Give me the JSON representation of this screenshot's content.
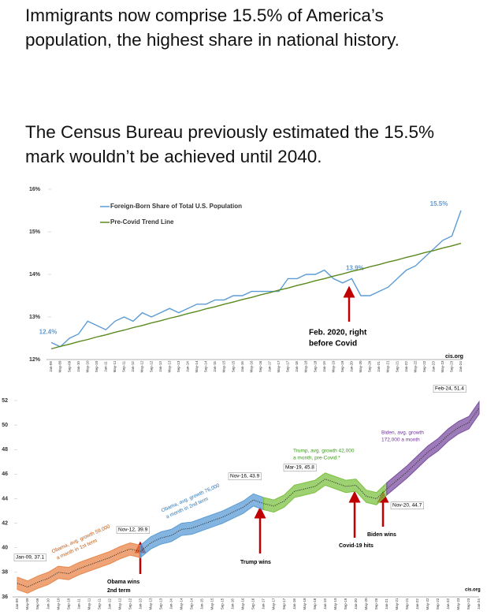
{
  "post": {
    "paragraphs": [
      "Immigrants now comprise 15.5% of America’s population, the highest share in national history.",
      "The Census Bureau previously estimated the 15.5% mark wouldn’t be achieved until 2040."
    ]
  },
  "chart_data": [
    {
      "type": "line",
      "legend": "top-left",
      "categories": [
        "Jan-09",
        "May-09",
        "Sep-09",
        "Jan-10",
        "May-10",
        "Sep-10",
        "Jan-11",
        "May-11",
        "Sep-11",
        "Jan-12",
        "May-12",
        "Sep-12",
        "Jan-13",
        "May-13",
        "Sep-13",
        "Jan-14",
        "May-14",
        "Sep-14",
        "Jan-15",
        "May-15",
        "Sep-15",
        "Jan-16",
        "May-16",
        "Sep-16",
        "Jan-17",
        "May-17",
        "Sep-17",
        "Jan-18",
        "May-18",
        "Sep-18",
        "Jan-19",
        "May-19",
        "Sep-19",
        "Jan-20",
        "May-20",
        "Sep-20",
        "Jan-21",
        "May-21",
        "Sep-21",
        "Jan-22",
        "May-22",
        "Sep-22",
        "Jan-23",
        "May-23",
        "Sep-23",
        "Jan-24"
      ],
      "series": [
        {
          "name": "Foreign-Born Share of Total U.S. Population",
          "color": "#5b9bd5",
          "values": [
            12.4,
            12.3,
            12.5,
            12.6,
            12.9,
            12.8,
            12.7,
            12.9,
            13.0,
            12.9,
            13.1,
            13.0,
            13.1,
            13.2,
            13.1,
            13.2,
            13.3,
            13.3,
            13.4,
            13.4,
            13.5,
            13.5,
            13.6,
            13.6,
            13.6,
            13.6,
            13.9,
            13.9,
            14.0,
            14.0,
            14.1,
            13.9,
            13.8,
            13.9,
            13.5,
            13.5,
            13.6,
            13.7,
            13.9,
            14.1,
            14.2,
            14.4,
            14.6,
            14.8,
            14.9,
            15.5
          ],
          "value_labels": [
            "12.4%",
            null,
            null,
            null,
            null,
            null,
            null,
            null,
            null,
            null,
            null,
            null,
            null,
            null,
            null,
            null,
            null,
            null,
            null,
            null,
            null,
            null,
            null,
            null,
            null,
            null,
            null,
            null,
            null,
            null,
            null,
            null,
            null,
            "13.9%",
            null,
            null,
            null,
            null,
            null,
            null,
            null,
            null,
            null,
            null,
            null,
            "15.5%"
          ]
        },
        {
          "name": "Pre-Covid Trend Line",
          "color": "#5a8a1e",
          "values": [
            12.25,
            12.31,
            12.36,
            12.42,
            12.47,
            12.53,
            12.58,
            12.64,
            12.69,
            12.75,
            12.8,
            12.86,
            12.91,
            12.97,
            13.02,
            13.08,
            13.13,
            13.19,
            13.24,
            13.3,
            13.35,
            13.41,
            13.46,
            13.52,
            13.57,
            13.63,
            13.68,
            13.74,
            13.79,
            13.85,
            13.9,
            13.96,
            14.01,
            14.07,
            14.12,
            14.18,
            14.23,
            14.29,
            14.34,
            14.4,
            14.45,
            14.51,
            14.56,
            14.62,
            14.67,
            14.73
          ]
        }
      ],
      "ylim": [
        12,
        16
      ],
      "yticks": [
        {
          "value": 12,
          "label": "12%"
        },
        {
          "value": 13,
          "label": "13%"
        },
        {
          "value": 14,
          "label": "14%"
        },
        {
          "value": 15,
          "label": "15%"
        },
        {
          "value": 16,
          "label": "16%"
        }
      ],
      "annotations": [
        "Feb. 2020, right",
        "before Covid",
        "cis.org"
      ]
    },
    {
      "type": "line",
      "categories": [
        "Jan-09",
        "May-09",
        "Sep-09",
        "Jan-10",
        "May-10",
        "Sep-10",
        "Jan-11",
        "May-11",
        "Sep-11",
        "Jan-12",
        "May-12",
        "Sep-12",
        "Jan-13",
        "May-13",
        "Sep-13",
        "Jan-14",
        "May-14",
        "Sep-14",
        "Jan-15",
        "May-15",
        "Sep-15",
        "Jan-16",
        "May-16",
        "Sep-16",
        "Jan-17",
        "May-17",
        "Sep-17",
        "Jan-18",
        "May-18",
        "Sep-18",
        "Jan-19",
        "May-19",
        "Sep-19",
        "Jan-20",
        "May-20",
        "Sep-20",
        "Jan-21",
        "May-21",
        "Sep-21",
        "Jan-22",
        "May-22",
        "Sep-22",
        "Jan-23",
        "May-23",
        "Sep-23",
        "Jan-24"
      ],
      "series": [
        {
          "color": "#e8864a",
          "error": 0.5,
          "values": [
            37.1,
            36.8,
            37.2,
            37.5,
            38.0,
            37.9,
            38.3,
            38.6,
            38.9,
            39.2,
            39.6,
            39.9,
            39.7,
            null,
            null,
            null,
            null,
            null,
            null,
            null,
            null,
            null,
            null,
            null,
            null,
            null,
            null,
            null,
            null,
            null,
            null,
            null,
            null,
            null,
            null,
            null,
            null,
            null,
            null,
            null,
            null,
            null,
            null,
            null,
            null,
            null
          ]
        },
        {
          "color": "#5b9bd5",
          "error": 0.5,
          "values": [
            null,
            null,
            null,
            null,
            null,
            null,
            null,
            null,
            null,
            null,
            null,
            null,
            39.7,
            40.4,
            40.8,
            41.0,
            41.5,
            41.6,
            41.9,
            42.2,
            42.5,
            42.9,
            43.3,
            43.9,
            43.6,
            null,
            null,
            null,
            null,
            null,
            null,
            null,
            null,
            null,
            null,
            null,
            null,
            null,
            null,
            null,
            null,
            null,
            null,
            null,
            null,
            null
          ]
        },
        {
          "color": "#7cc142",
          "error": 0.5,
          "values": [
            null,
            null,
            null,
            null,
            null,
            null,
            null,
            null,
            null,
            null,
            null,
            null,
            null,
            null,
            null,
            null,
            null,
            null,
            null,
            null,
            null,
            null,
            null,
            null,
            43.6,
            43.4,
            43.8,
            44.6,
            44.8,
            45.0,
            45.6,
            45.3,
            45.0,
            45.1,
            44.2,
            44.0,
            44.8,
            null,
            null,
            null,
            null,
            null,
            null,
            null,
            null,
            null
          ]
        },
        {
          "color": "#7b4fa0",
          "error": 0.5,
          "values": [
            null,
            null,
            null,
            null,
            null,
            null,
            null,
            null,
            null,
            null,
            null,
            null,
            null,
            null,
            null,
            null,
            null,
            null,
            null,
            null,
            null,
            null,
            null,
            null,
            null,
            null,
            null,
            null,
            null,
            null,
            null,
            null,
            null,
            null,
            null,
            null,
            44.8,
            45.5,
            46.2,
            47.0,
            47.8,
            48.4,
            49.2,
            49.8,
            50.2,
            51.4
          ]
        }
      ],
      "ylim": [
        36,
        52
      ],
      "yticks": [
        36,
        38,
        40,
        42,
        44,
        46,
        48,
        50,
        52
      ],
      "annotations": [
        "Jan-09, 37.1",
        "Nov-12, 39.9",
        "Nov-16, 43.9",
        "Mar-19, 45.8",
        "Nov-20, 44.7",
        "Feb-24, 51.4",
        "Obama, avg. growth 59,000",
        "a month in 1st term",
        "Obama, avg. growth 76,000",
        "a month in 2nd term",
        "Trump, avg. growth 42,000",
        "a month, pre-Covid.*",
        "Biden, avg. growth",
        "172,000 a month",
        "Obama wins",
        "2nd term",
        "Trump wins",
        "Covid-19 hits",
        "Biden wins",
        "cis.org"
      ]
    }
  ]
}
